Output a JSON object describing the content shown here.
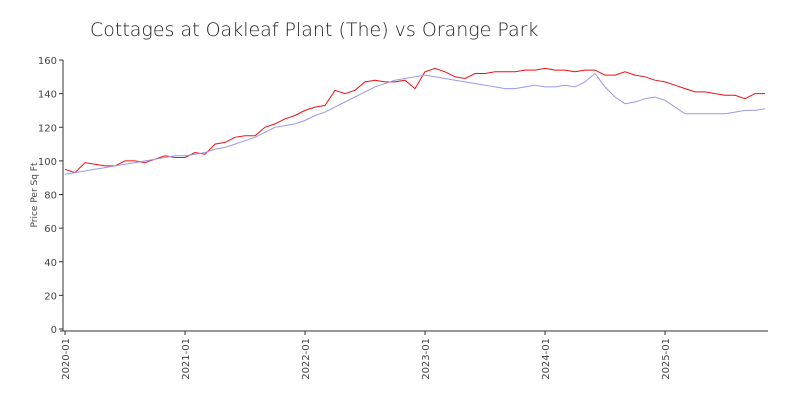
{
  "chart_data": {
    "type": "line",
    "title": "Cottages at Oakleaf Plant (The) vs Orange Park",
    "ylabel": "Price Per Sq Ft",
    "xlabel": "",
    "ylim": [
      0,
      160
    ],
    "yticks": [
      0,
      20,
      40,
      60,
      80,
      100,
      120,
      140,
      160
    ],
    "xticks": [
      "2020-01",
      "2021-01",
      "2022-01",
      "2023-01",
      "2024-01",
      "2025-01"
    ],
    "grid": false,
    "legend": "none",
    "series": [
      {
        "color": "#ee1111",
        "points": [
          [
            "2020-01",
            95
          ],
          [
            "2020-02",
            93
          ],
          [
            "2020-03",
            99
          ],
          [
            "2020-04",
            98
          ],
          [
            "2020-05",
            97
          ],
          [
            "2020-06",
            97
          ],
          [
            "2020-07",
            100
          ],
          [
            "2020-08",
            100
          ],
          [
            "2020-09",
            99
          ],
          [
            "2020-10",
            101
          ],
          [
            "2020-11",
            103
          ],
          [
            "2020-12",
            102
          ],
          [
            "2021-01",
            102
          ],
          [
            "2021-02",
            105
          ],
          [
            "2021-03",
            104
          ],
          [
            "2021-04",
            110
          ],
          [
            "2021-05",
            111
          ],
          [
            "2021-06",
            114
          ],
          [
            "2021-07",
            115
          ],
          [
            "2021-08",
            115
          ],
          [
            "2021-09",
            120
          ],
          [
            "2021-10",
            122
          ],
          [
            "2021-11",
            125
          ],
          [
            "2021-12",
            127
          ],
          [
            "2022-01",
            130
          ],
          [
            "2022-02",
            132
          ],
          [
            "2022-03",
            133
          ],
          [
            "2022-04",
            142
          ],
          [
            "2022-05",
            140
          ],
          [
            "2022-06",
            142
          ],
          [
            "2022-07",
            147
          ],
          [
            "2022-08",
            148
          ],
          [
            "2022-09",
            147
          ],
          [
            "2022-10",
            147
          ],
          [
            "2022-11",
            148
          ],
          [
            "2022-12",
            143
          ],
          [
            "2023-01",
            153
          ],
          [
            "2023-02",
            155
          ],
          [
            "2023-03",
            153
          ],
          [
            "2023-04",
            150
          ],
          [
            "2023-05",
            149
          ],
          [
            "2023-06",
            152
          ],
          [
            "2023-07",
            152
          ],
          [
            "2023-08",
            153
          ],
          [
            "2023-09",
            153
          ],
          [
            "2023-10",
            153
          ],
          [
            "2023-11",
            154
          ],
          [
            "2023-12",
            154
          ],
          [
            "2024-01",
            155
          ],
          [
            "2024-02",
            154
          ],
          [
            "2024-03",
            154
          ],
          [
            "2024-04",
            153
          ],
          [
            "2024-05",
            154
          ],
          [
            "2024-06",
            154
          ],
          [
            "2024-07",
            151
          ],
          [
            "2024-08",
            151
          ],
          [
            "2024-09",
            153
          ],
          [
            "2024-10",
            151
          ],
          [
            "2024-11",
            150
          ],
          [
            "2024-12",
            148
          ],
          [
            "2025-01",
            147
          ],
          [
            "2025-02",
            145
          ],
          [
            "2025-03",
            143
          ],
          [
            "2025-04",
            141
          ],
          [
            "2025-05",
            141
          ],
          [
            "2025-06",
            140
          ],
          [
            "2025-07",
            139
          ],
          [
            "2025-08",
            139
          ],
          [
            "2025-09",
            137
          ],
          [
            "2025-10",
            140
          ],
          [
            "2025-11",
            140
          ]
        ]
      },
      {
        "color": "#9999ee",
        "points": [
          [
            "2020-01",
            92
          ],
          [
            "2020-02",
            93
          ],
          [
            "2020-03",
            94
          ],
          [
            "2020-04",
            95
          ],
          [
            "2020-05",
            96
          ],
          [
            "2020-06",
            97
          ],
          [
            "2020-07",
            98
          ],
          [
            "2020-08",
            99
          ],
          [
            "2020-09",
            100
          ],
          [
            "2020-10",
            101
          ],
          [
            "2020-11",
            102
          ],
          [
            "2020-12",
            103
          ],
          [
            "2021-01",
            103
          ],
          [
            "2021-02",
            104
          ],
          [
            "2021-03",
            105
          ],
          [
            "2021-04",
            107
          ],
          [
            "2021-05",
            108
          ],
          [
            "2021-06",
            110
          ],
          [
            "2021-07",
            112
          ],
          [
            "2021-08",
            114
          ],
          [
            "2021-09",
            117
          ],
          [
            "2021-10",
            120
          ],
          [
            "2021-11",
            121
          ],
          [
            "2021-12",
            122
          ],
          [
            "2022-01",
            124
          ],
          [
            "2022-02",
            127
          ],
          [
            "2022-03",
            129
          ],
          [
            "2022-04",
            132
          ],
          [
            "2022-05",
            135
          ],
          [
            "2022-06",
            138
          ],
          [
            "2022-07",
            141
          ],
          [
            "2022-08",
            144
          ],
          [
            "2022-09",
            146
          ],
          [
            "2022-10",
            148
          ],
          [
            "2022-11",
            149
          ],
          [
            "2022-12",
            150
          ],
          [
            "2023-01",
            151
          ],
          [
            "2023-02",
            150
          ],
          [
            "2023-03",
            149
          ],
          [
            "2023-04",
            148
          ],
          [
            "2023-05",
            147
          ],
          [
            "2023-06",
            146
          ],
          [
            "2023-07",
            145
          ],
          [
            "2023-08",
            144
          ],
          [
            "2023-09",
            143
          ],
          [
            "2023-10",
            143
          ],
          [
            "2023-11",
            144
          ],
          [
            "2023-12",
            145
          ],
          [
            "2024-01",
            144
          ],
          [
            "2024-02",
            144
          ],
          [
            "2024-03",
            145
          ],
          [
            "2024-04",
            144
          ],
          [
            "2024-05",
            147
          ],
          [
            "2024-06",
            152
          ],
          [
            "2024-07",
            144
          ],
          [
            "2024-08",
            138
          ],
          [
            "2024-09",
            134
          ],
          [
            "2024-10",
            135
          ],
          [
            "2024-11",
            137
          ],
          [
            "2024-12",
            138
          ],
          [
            "2025-01",
            136
          ],
          [
            "2025-02",
            132
          ],
          [
            "2025-03",
            128
          ],
          [
            "2025-04",
            128
          ],
          [
            "2025-05",
            128
          ],
          [
            "2025-06",
            128
          ],
          [
            "2025-07",
            128
          ],
          [
            "2025-08",
            129
          ],
          [
            "2025-09",
            130
          ],
          [
            "2025-10",
            130
          ],
          [
            "2025-11",
            131
          ]
        ]
      }
    ]
  }
}
